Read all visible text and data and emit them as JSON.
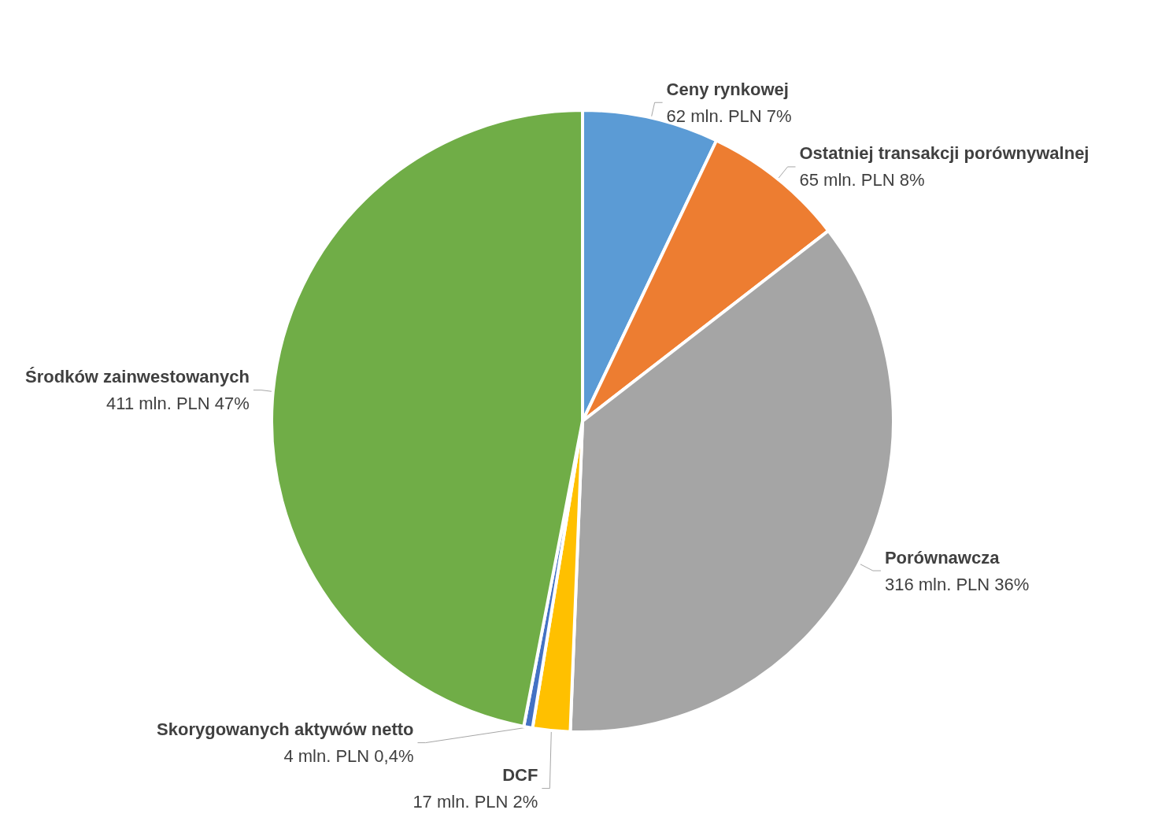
{
  "chart_data": {
    "type": "pie",
    "categories": [
      "Ceny rynkowej",
      "Ostatniej transakcji porównywalnej",
      "Porównawcza",
      "DCF",
      "Skorygowanych aktywów netto",
      "Środków zainwestowanych"
    ],
    "values": [
      62,
      65,
      316,
      17,
      4,
      411
    ],
    "colors": [
      "#5b9bd5",
      "#ed7d31",
      "#a5a5a5",
      "#ffc000",
      "#4472c4",
      "#70ad47"
    ],
    "value_labels": [
      "62 mln. PLN 7%",
      "65 mln. PLN 8%",
      "316 mln. PLN 36%",
      "17 mln. PLN 2%",
      "4 mln. PLN 0,4%",
      "411 mln. PLN 47%"
    ]
  }
}
